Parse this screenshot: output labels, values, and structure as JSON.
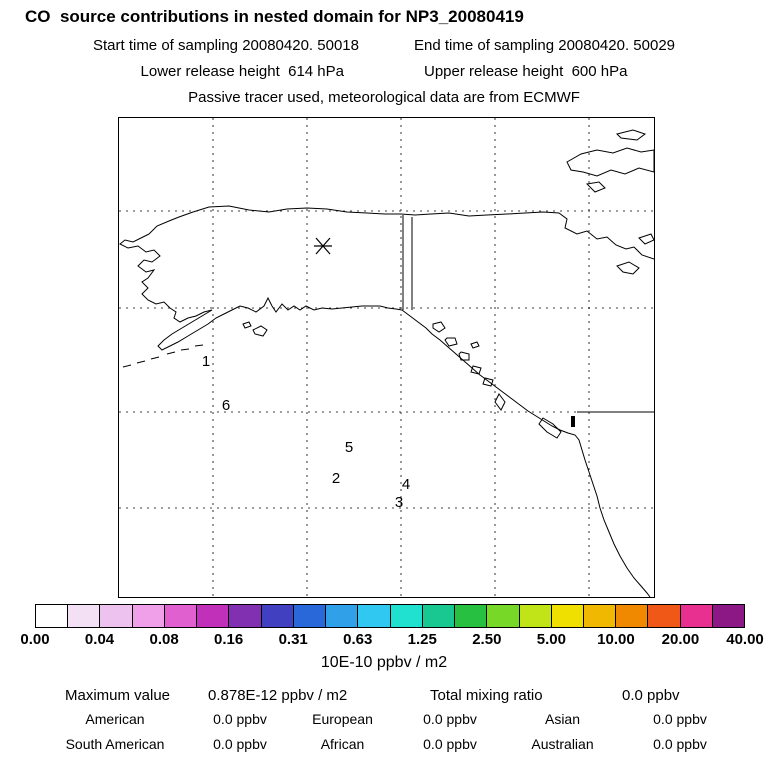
{
  "header": {
    "title": "CO  source contributions in nested domain for NP3_20080419",
    "start_time": "Start time of sampling 20080420. 50018",
    "end_time": "End time of sampling 20080420. 50029",
    "lower_release": "Lower release height  614 hPa",
    "upper_release": "Upper release height  600 hPa",
    "tracer_note": "Passive tracer used, meteorological data are from ECMWF"
  },
  "map": {
    "sampling_marker": "*",
    "markers": [
      {
        "label": "1"
      },
      {
        "label": "6"
      },
      {
        "label": "5"
      },
      {
        "label": "2"
      },
      {
        "label": "4"
      },
      {
        "label": "3"
      }
    ]
  },
  "colorbar": {
    "colors": [
      "#ffffff",
      "#f4e0f4",
      "#eec2ee",
      "#f0a0e8",
      "#e060d0",
      "#c030b8",
      "#8030b0",
      "#4040c0",
      "#2868d8",
      "#30a0e8",
      "#30c8f0",
      "#20e0d0",
      "#18c890",
      "#28c040",
      "#78d828",
      "#c0e418",
      "#f0e000",
      "#f0b800",
      "#f08800",
      "#f05818",
      "#e83090",
      "#8c1886"
    ],
    "ticks": [
      "0.00",
      "0.04",
      "0.08",
      "0.16",
      "0.31",
      "0.63",
      "1.25",
      "2.50",
      "5.00",
      "10.00",
      "20.00",
      "40.00"
    ],
    "unit": "10E-10 ppbv / m2"
  },
  "stats": {
    "max_label": "Maximum value",
    "max_value": "0.878E-12 ppbv / m2",
    "total_label": "Total mixing ratio",
    "total_value": "0.0 ppbv",
    "regions": [
      {
        "name": "American",
        "value": "0.0 ppbv"
      },
      {
        "name": "European",
        "value": "0.0 ppbv"
      },
      {
        "name": "Asian",
        "value": "0.0 ppbv"
      },
      {
        "name": "South American",
        "value": "0.0 ppbv"
      },
      {
        "name": "African",
        "value": "0.0 ppbv"
      },
      {
        "name": "Australian",
        "value": "0.0 ppbv"
      }
    ]
  },
  "chart_data": {
    "type": "heatmap",
    "title": "CO source contributions in nested domain for NP3_20080419",
    "subtitle_lines": [
      "Start time of sampling 20080420. 50018",
      "End time of sampling 20080420. 50029",
      "Lower release height 614 hPa",
      "Upper release height 600 hPa",
      "Passive tracer used, meteorological data are from ECMWF"
    ],
    "map_region": "Alaska / western Canada / northeast Pacific",
    "release_point_labels": [
      "1",
      "2",
      "3",
      "4",
      "5",
      "6"
    ],
    "colorbar_ticks": [
      0.0,
      0.04,
      0.08,
      0.16,
      0.31,
      0.63,
      1.25,
      2.5,
      5.0,
      10.0,
      20.0,
      40.0
    ],
    "colorbar_unit": "10E-10 ppbv / m2",
    "colorbar_scale": "log",
    "maximum_value": "0.878E-12 ppbv / m2",
    "total_mixing_ratio": "0.0 ppbv",
    "contributions_ppbv": {
      "American": 0.0,
      "European": 0.0,
      "Asian": 0.0,
      "South American": 0.0,
      "African": 0.0,
      "Australian": 0.0
    },
    "notes": "No nonzero concentration field visible on map; grid shown dashed"
  }
}
